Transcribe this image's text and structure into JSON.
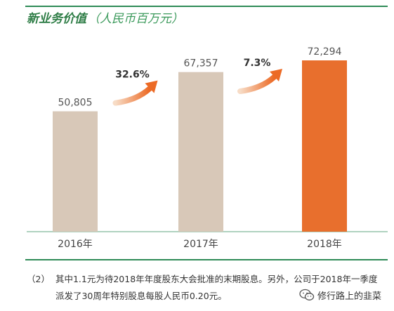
{
  "title": "新业务价值",
  "unit": "（人民币百万元）",
  "chart_data": {
    "type": "bar",
    "categories": [
      "2016年",
      "2017年",
      "2018年"
    ],
    "values": [
      50805,
      67357,
      72294
    ],
    "value_labels": [
      "50,805",
      "67,357",
      "72,294"
    ],
    "growth_labels": [
      "32.6%",
      "7.3%"
    ],
    "ylim": [
      0,
      80000
    ],
    "grid": false,
    "colors": {
      "bar": "#d8c8b8",
      "highlight": "#e86f2d",
      "arrow_start": "#f7dcc6",
      "arrow_end": "#ec6a25"
    },
    "highlight_index": 2
  },
  "footnote": {
    "marker": "（2）",
    "line1": "其中1.1元为待2018年年度股东大会批准的末期股息。另外，公司于2018年一季度",
    "line2": "派发了30周年特别股息每股人民币0.20元。"
  },
  "watermark": {
    "icon": "wechat-icon",
    "text": "修行路上的韭菜"
  }
}
